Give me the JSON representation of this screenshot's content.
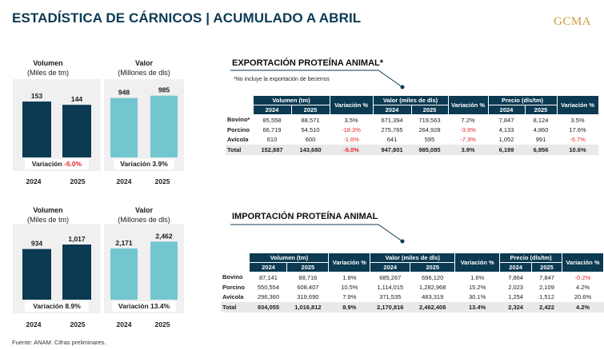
{
  "title": "ESTADÍSTICA DE CÁRNICOS | ACUMULADO A ABRIL",
  "logo": "GCMA",
  "footer": "Fuente: ANAM. Cifras preliminares.",
  "colors": {
    "dark": "#0b3a52",
    "light": "#73c6cf",
    "negative": "#e8262b",
    "header": "#0b3a52"
  },
  "export_charts": {
    "volumen": {
      "title": "Volumen",
      "unit": "(Miles de tm)",
      "variation_label": "Variación",
      "variation_value": "-6.0%"
    },
    "valor": {
      "title": "Valor",
      "unit": "(Millones de dls)",
      "variation_label": "Variación",
      "variation_value": "3.9%"
    }
  },
  "import_charts": {
    "volumen": {
      "title": "Volumen",
      "unit": "(Miles de tm)",
      "variation_label": "Variación",
      "variation_value": "8.9%"
    },
    "valor": {
      "title": "Valor",
      "unit": "(Millones de dls)",
      "variation_label": "Variación",
      "variation_value": "13.4%"
    }
  },
  "chart_data": [
    {
      "type": "bar",
      "title": "Volumen",
      "subtitle": "(Miles de tm)",
      "categories": [
        "2024",
        "2025"
      ],
      "values": [
        153,
        144
      ],
      "labels": [
        "153",
        "144"
      ],
      "color": "#0b3a52",
      "ylim": [
        0,
        200
      ]
    },
    {
      "type": "bar",
      "title": "Valor",
      "subtitle": "(Millones de dls)",
      "categories": [
        "2024",
        "2025"
      ],
      "values": [
        948,
        985
      ],
      "labels": [
        "948",
        "985"
      ],
      "color": "#73c6cf",
      "ylim": [
        0,
        1200
      ]
    },
    {
      "type": "bar",
      "title": "Volumen",
      "subtitle": "(Miles de tm)",
      "categories": [
        "2024",
        "2025"
      ],
      "values": [
        934,
        1017
      ],
      "labels": [
        "934",
        "1,017"
      ],
      "color": "#0b3a52",
      "ylim": [
        0,
        1300
      ]
    },
    {
      "type": "bar",
      "title": "Valor",
      "subtitle": "(Millones de dls)",
      "categories": [
        "2024",
        "2025"
      ],
      "values": [
        2171,
        2462
      ],
      "labels": [
        "2,171",
        "2,462"
      ],
      "color": "#73c6cf",
      "ylim": [
        0,
        3100
      ]
    }
  ],
  "export_table": {
    "title": "EXPORTACIÓN PROTEÍNA ANIMAL*",
    "note": "*No incluye la exportación de becerros",
    "groups": [
      "Volumen (tm)",
      "Variación %",
      "Valor (miles de dls)",
      "Variación %",
      "Precio (dls/tm)",
      "Variación %"
    ],
    "years": [
      "2024",
      "2025"
    ],
    "rows": [
      {
        "label": "Bovino*",
        "cells": [
          "85,558",
          "88,571",
          "3.5%",
          "671,394",
          "719,563",
          "7.2%",
          "7,847",
          "8,124",
          "3.5%"
        ],
        "neg": [
          false,
          false,
          false,
          false,
          false,
          false,
          false,
          false,
          false
        ]
      },
      {
        "label": "Porcino",
        "cells": [
          "66,719",
          "54,510",
          "-18.3%",
          "275,765",
          "264,928",
          "-3.9%",
          "4,133",
          "4,860",
          "17.6%"
        ],
        "neg": [
          false,
          false,
          true,
          false,
          false,
          true,
          false,
          false,
          false
        ]
      },
      {
        "label": "Avícola",
        "cells": [
          "610",
          "600",
          "-1.6%",
          "641",
          "595",
          "-7.3%",
          "1,052",
          "991",
          "-5.7%"
        ],
        "neg": [
          false,
          false,
          true,
          false,
          false,
          true,
          false,
          false,
          true
        ]
      },
      {
        "label": "Total",
        "cells": [
          "152,887",
          "143,680",
          "-6.0%",
          "947,801",
          "985,085",
          "3.9%",
          "6,199",
          "6,856",
          "10.6%"
        ],
        "neg": [
          false,
          false,
          true,
          false,
          false,
          false,
          false,
          false,
          false
        ],
        "total": true
      }
    ]
  },
  "import_table": {
    "title": "IMPORTACIÓN PROTEÍNA ANIMAL",
    "groups": [
      "Volumen (tm)",
      "Variación %",
      "Valor (miles de dls)",
      "Variación %",
      "Precio (dls/tm)",
      "Variación %"
    ],
    "years": [
      "2024",
      "2025"
    ],
    "rows": [
      {
        "label": "Bovino",
        "cells": [
          "87,141",
          "88,716",
          "1.8%",
          "685,267",
          "696,120",
          "1.6%",
          "7,864",
          "7,847",
          "-0.2%"
        ],
        "neg": [
          false,
          false,
          false,
          false,
          false,
          false,
          false,
          false,
          true
        ]
      },
      {
        "label": "Porcino",
        "cells": [
          "550,554",
          "608,407",
          "10.5%",
          "1,114,015",
          "1,282,968",
          "15.2%",
          "2,023",
          "2,109",
          "4.2%"
        ],
        "neg": [
          false,
          false,
          false,
          false,
          false,
          false,
          false,
          false,
          false
        ]
      },
      {
        "label": "Avícola",
        "cells": [
          "296,360",
          "319,690",
          "7.9%",
          "371,535",
          "483,319",
          "30.1%",
          "1,254",
          "1,512",
          "20.6%"
        ],
        "neg": [
          false,
          false,
          false,
          false,
          false,
          false,
          false,
          false,
          false
        ]
      },
      {
        "label": "Total",
        "cells": [
          "934,055",
          "1,016,812",
          "8.9%",
          "2,170,816",
          "2,462,408",
          "13.4%",
          "2,324",
          "2,422",
          "4.2%"
        ],
        "neg": [
          false,
          false,
          false,
          false,
          false,
          false,
          false,
          false,
          false
        ],
        "total": true
      }
    ]
  }
}
